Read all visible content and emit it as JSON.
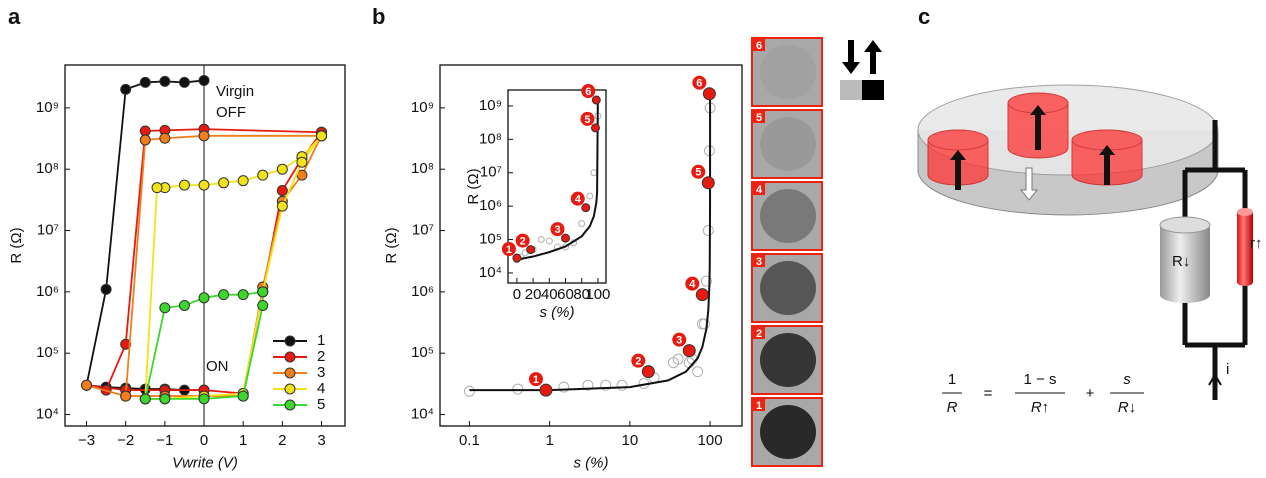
{
  "panel_labels": [
    "a",
    "b",
    "c"
  ],
  "chart_data": [
    {
      "type": "line",
      "xlabel": "Vwrite (V)",
      "ylabel": "R (Ω)",
      "log_y": true,
      "xlim": [
        -3.55,
        3.6
      ],
      "ylim": [
        6500,
        5000000000
      ],
      "xticks": [
        {
          "value": -3,
          "label": "−3"
        },
        {
          "value": -2,
          "label": "−2"
        },
        {
          "value": -1,
          "label": "−1"
        },
        0,
        1,
        2,
        3
      ],
      "yticks": [
        {
          "value": 10000,
          "label": "10⁴"
        },
        {
          "value": 100000,
          "label": "10⁵"
        },
        {
          "value": 1000000,
          "label": "10⁶"
        },
        {
          "value": 10000000,
          "label": "10⁷"
        },
        {
          "value": 100000000,
          "label": "10⁸"
        },
        {
          "value": 1000000000,
          "label": "10⁹"
        }
      ],
      "axvline": 0,
      "legend": "lower right",
      "annotations": [
        "Virgin",
        "OFF",
        "ON"
      ],
      "series": [
        {
          "name": "1",
          "color": "#111111",
          "style": "line+marker",
          "x": [
            0,
            -0.5,
            -1,
            -1.5,
            -2,
            -2.5,
            -3,
            -2.5,
            -2,
            -1.5,
            -1,
            -0.5,
            0
          ],
          "values": [
            2800000000,
            2600000000,
            2700000000,
            2600000000,
            2000000000,
            1100000,
            30000,
            28000,
            27000,
            26000,
            26000,
            25000,
            25000
          ]
        },
        {
          "name": "2",
          "color": "#e8190f",
          "style": "line+marker",
          "x": [
            3,
            0,
            -1,
            -1.5,
            -2,
            -2.5,
            -3,
            -2,
            -1,
            0,
            1,
            1.5,
            2,
            2.5,
            3
          ],
          "values": [
            400000000,
            450000000,
            430000000,
            420000000,
            140000,
            25000,
            30000,
            25000,
            25000,
            25000,
            22000,
            1000000,
            45000000,
            150000000,
            400000000
          ]
        },
        {
          "name": "3",
          "color": "#f07e1a",
          "style": "line+marker",
          "x": [
            3,
            0,
            -1,
            -1.5,
            -2,
            -3,
            -2,
            -1,
            0,
            1,
            1.5,
            2,
            2.5,
            3
          ],
          "values": [
            350000000,
            350000000,
            320000000,
            300000000,
            20000,
            30000,
            20000,
            20000,
            20000,
            20000,
            1200000,
            30000000,
            80000000,
            350000000
          ]
        },
        {
          "name": "4",
          "color": "#f2e21a",
          "style": "line+marker",
          "x": [
            3,
            2.5,
            2,
            1.5,
            1,
            0.5,
            0,
            -0.5,
            -1,
            -1.2,
            -1.5,
            -1,
            0,
            1,
            1.5,
            2,
            2.5,
            3
          ],
          "values": [
            350000000,
            160000000,
            100000000,
            80000000,
            65000000,
            60000000,
            55000000,
            55000000,
            50000000,
            50000000,
            18000,
            18000,
            20000,
            22000,
            1000000,
            25000000,
            130000000,
            350000000
          ]
        },
        {
          "name": "5",
          "color": "#3dd62c",
          "style": "line+marker",
          "x": [
            -1.5,
            -1,
            -0.5,
            0,
            0.5,
            1,
            1.5,
            1.5,
            1,
            0,
            -1,
            -1.5
          ],
          "values": [
            18000,
            550000,
            600000,
            800000,
            900000,
            900000,
            1000000,
            600000,
            20000,
            18000,
            18000,
            18000
          ]
        }
      ]
    },
    {
      "type": "scatter",
      "xlabel": "s (%)",
      "ylabel": "R (Ω)",
      "log_x": true,
      "log_y": true,
      "xlim": [
        0.043,
        250
      ],
      "ylim": [
        6500,
        5000000000
      ],
      "xticks": [
        0.1,
        1,
        10,
        100
      ],
      "yticks": [
        {
          "value": 10000,
          "label": "10⁴"
        },
        {
          "value": 100000,
          "label": "10⁵"
        },
        {
          "value": 1000000,
          "label": "10⁶"
        },
        {
          "value": 10000000,
          "label": "10⁷"
        },
        {
          "value": 100000000,
          "label": "10⁸"
        },
        {
          "value": 1000000000,
          "label": "10⁹"
        }
      ],
      "series": [
        {
          "color": "#b0b0b0",
          "style": "marker",
          "x": [
            0.1,
            0.4,
            1.5,
            3,
            5,
            8,
            15,
            20,
            35,
            40,
            55,
            60,
            70,
            80,
            85,
            90,
            95,
            98,
            100
          ],
          "values": [
            24000,
            26000,
            28000,
            30000,
            30000,
            30000,
            32000,
            40000,
            70000,
            80000,
            70000,
            80000,
            50000,
            300000,
            300000,
            1500000,
            10000000,
            200000000,
            1000000000
          ]
        },
        {
          "color": "#111111",
          "style": "line",
          "x": [
            0.1,
            1,
            10,
            30,
            50,
            70,
            80,
            90,
            95,
            98,
            99,
            99.9,
            99.99,
            100
          ],
          "values": [
            25000,
            25000,
            28000,
            36000,
            50000,
            83000,
            125000,
            250000,
            500000,
            1250000,
            2500000,
            24000000,
            200000000,
            2000000000
          ]
        },
        {
          "color": "#e8190f",
          "style": "marker",
          "point_labels": [
            "1",
            "2",
            "3",
            "4",
            "5",
            "6"
          ],
          "x": [
            0.9,
            17,
            55,
            80,
            95,
            98
          ],
          "values": [
            25000,
            50000,
            110000,
            900000,
            60000000,
            1700000000
          ]
        }
      ]
    },
    {
      "type": "scatter",
      "xlabel": "s (%)",
      "ylabel": "R (Ω)",
      "log_y": true,
      "xlim": [
        -11,
        110
      ],
      "ylim": [
        5000,
        3000000000
      ],
      "xticks": [
        0,
        20,
        40,
        60,
        80,
        100
      ],
      "yticks": [
        {
          "value": 10000,
          "label": "10⁴"
        },
        {
          "value": 100000,
          "label": "10⁵"
        },
        {
          "value": 1000000,
          "label": "10⁶"
        },
        {
          "value": 10000000,
          "label": "10⁷"
        },
        {
          "value": 100000000,
          "label": "10⁸"
        },
        {
          "value": 1000000000,
          "label": "10⁹"
        }
      ],
      "series": [
        {
          "color": "#b0b0b0",
          "style": "marker",
          "x": [
            0,
            5,
            10,
            20,
            30,
            40,
            50,
            60,
            70,
            80,
            90,
            95,
            100
          ],
          "values": [
            25000,
            30000,
            40000,
            50000,
            100000,
            90000,
            60000,
            60000,
            80000,
            300000,
            2000000,
            10000000,
            500000000
          ]
        },
        {
          "color": "#111111",
          "style": "line",
          "x": [
            0,
            20,
            40,
            60,
            80,
            90,
            95,
            98,
            99,
            100
          ],
          "values": [
            25000,
            31000,
            42000,
            62000,
            125000,
            250000,
            500000,
            1250000,
            2500000,
            2000000000
          ]
        },
        {
          "color": "#e8190f",
          "style": "marker",
          "point_labels": [
            "1",
            "2",
            "3",
            "4",
            "5",
            "6"
          ],
          "x": [
            0,
            17,
            60,
            85,
            97,
            98
          ],
          "values": [
            28000,
            50000,
            110000,
            900000,
            220000000,
            1500000000
          ]
        }
      ]
    }
  ],
  "images": {
    "labels": [
      "6",
      "5",
      "4",
      "3",
      "2",
      "1"
    ]
  },
  "diagram": {
    "r_down": "R↓",
    "r_up": "r↑",
    "current": "i",
    "equation": {
      "lhs_num": "1",
      "lhs_den": "R",
      "eq": "=",
      "t1_num": "1 − s",
      "t1_den": "R↑",
      "plus": "+",
      "t2_num": "s",
      "t2_den": "R↓"
    }
  }
}
